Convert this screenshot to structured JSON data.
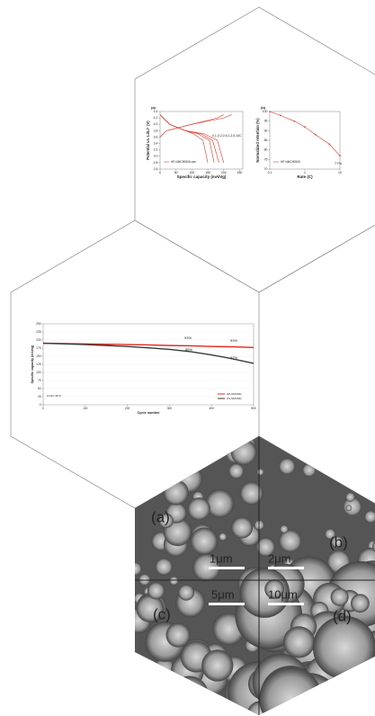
{
  "chart_data": [
    {
      "type": "line",
      "panel": "(a)",
      "ylabel": "Potential vs. Li/Li⁺ (V)",
      "xlabel": "Specific capacity (mAh/g)",
      "legend": "HP-NMC90505 rate",
      "annotation": "0.1,0.2,0.5,1,2,5,10C",
      "xlim": [
        0,
        260
      ],
      "ylim": [
        2.6,
        4.4
      ],
      "xticks": [
        0,
        50,
        100,
        150,
        200,
        250
      ],
      "yticks": [
        2.6,
        2.8,
        {
          "value": 3,
          "label": "3.0"
        },
        3.2,
        3.4,
        3.6,
        3.8,
        {
          "value": 4,
          "label": "4.0"
        },
        4.2,
        4.4
      ],
      "series": [
        {
          "color": "#d93a2b",
          "x": [
            0,
            30,
            80,
            140,
            180,
            200
          ],
          "values": [
            4.3,
            4,
            3.8,
            3.7,
            3.5,
            2.8
          ]
        },
        {
          "color": "#d93a2b",
          "x": [
            0,
            30,
            80,
            130,
            165,
            185
          ],
          "values": [
            4.3,
            4,
            3.8,
            3.7,
            3.5,
            2.8
          ]
        },
        {
          "color": "#d93a2b",
          "x": [
            0,
            30,
            80,
            120,
            155,
            170
          ],
          "values": [
            4.3,
            4,
            3.8,
            3.7,
            3.5,
            2.8
          ]
        },
        {
          "color": "#d93a2b",
          "x": [
            0,
            30,
            80,
            105,
            135,
            150
          ],
          "values": [
            4.3,
            4,
            3.8,
            3.7,
            3.5,
            2.8
          ]
        },
        {
          "color": "#d93a2b",
          "x": [
            0,
            20,
            100,
            180,
            200
          ],
          "values": [
            3.6,
            3.8,
            4,
            4.2,
            4.3
          ]
        },
        {
          "color": "#d93a2b",
          "x": [
            0,
            20,
            100,
            200,
            225
          ],
          "values": [
            3.6,
            3.8,
            4,
            4.2,
            4.3
          ]
        }
      ]
    },
    {
      "type": "line",
      "panel": "(b)",
      "ylabel": "Normalized retention (%)",
      "xlabel": "Rate (C)",
      "legend": "HP-NMC90505",
      "annotation": "77%",
      "xlog": true,
      "xlim": [
        0.1,
        10
      ],
      "xticks": [
        0.1,
        1,
        10
      ],
      "ylim": [
        70,
        100
      ],
      "yticks": [
        70,
        75,
        80,
        85,
        90,
        95,
        100
      ],
      "x": [
        0.1,
        0.2,
        0.5,
        1,
        2,
        5,
        10
      ],
      "series": [
        {
          "color": "#d93a2b",
          "values": [
            100,
            98,
            95,
            92,
            88,
            83,
            77
          ]
        }
      ]
    },
    {
      "type": "line",
      "ylabel": "Specific capacity (mAh/g)",
      "xlabel": "Cycle number",
      "condition": "1C/1C 30°C",
      "annotations": [
        "93%",
        "93%",
        "86%",
        "67%"
      ],
      "xlim": [
        0,
        500
      ],
      "xticks": [
        0,
        100,
        200,
        300,
        400,
        500
      ],
      "ylim": [
        0,
        250
      ],
      "yticks": [
        0,
        25,
        50,
        75,
        100,
        125,
        150,
        175,
        200,
        225,
        250
      ],
      "x": [
        0,
        50,
        100,
        150,
        200,
        250,
        300,
        350,
        400,
        450,
        500
      ],
      "series": [
        {
          "name": "HP-NMC811",
          "color": "#e02a1f",
          "values": [
            190,
            189,
            188,
            187,
            186,
            185,
            183,
            182,
            180,
            179,
            177
          ]
        },
        {
          "name": "CS-NMC811",
          "color": "#3a3a3a",
          "values": [
            190,
            188,
            186,
            183,
            180,
            176,
            171,
            164,
            154,
            142,
            128
          ]
        }
      ]
    }
  ],
  "images": {
    "labels": [
      "(a)",
      "(b)",
      "(c)",
      "(d)"
    ],
    "scale_bars": [
      "1μm",
      "2μm",
      "5μm",
      "10μm"
    ]
  }
}
